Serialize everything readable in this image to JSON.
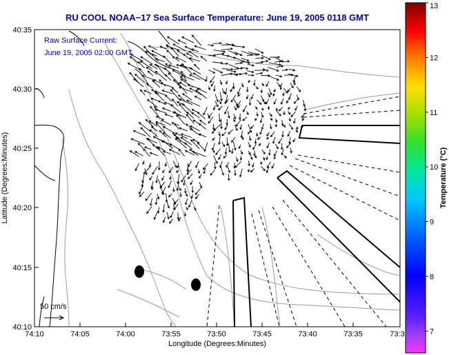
{
  "title": "RU COOL  NOAA−17  Sea Surface Temperature:  June 19, 2005 0118 GMT",
  "annotation": {
    "line1": "Raw Surface Current:",
    "line2": "June 19, 2005 02:00 GMT"
  },
  "x_axis": {
    "label": "Longitude (Degrees:Minutes)",
    "ticks": [
      "74:10",
      "74:05",
      "74:00",
      "73:55",
      "73:50",
      "73:45",
      "73:40",
      "73:35",
      "73:3"
    ]
  },
  "y_axis": {
    "label": "Latitude (Degrees:Minutes)",
    "ticks": [
      "40:35",
      "40:30",
      "40:25",
      "40:20",
      "40:15",
      "40:10"
    ]
  },
  "colorbar": {
    "label": "Temperature (°C)",
    "ticks": [
      "13",
      "12",
      "11",
      "10",
      "9",
      "8",
      "7"
    ],
    "min": 6.6,
    "max": 13
  },
  "scale_arrow": {
    "label": "50 cm/s"
  },
  "colors": {
    "title": "#0000c8",
    "annotation": "#0000c8",
    "land_contour": "#000000",
    "bathymetry": "#999999",
    "current_vector": "#000000"
  }
}
